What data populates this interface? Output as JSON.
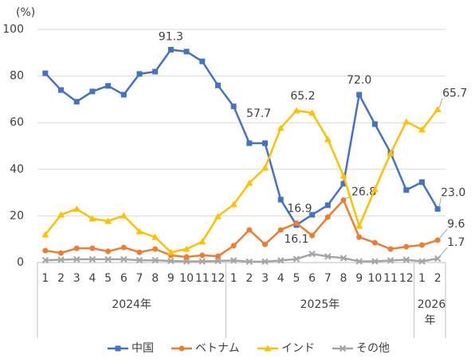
{
  "chart_data": {
    "type": "line",
    "y_label": "(%)",
    "ylim": [
      0,
      100
    ],
    "yticks": [
      0,
      20,
      40,
      60,
      80,
      100
    ],
    "grid": true,
    "groups": [
      {
        "label": "2024年",
        "categories": [
          "1",
          "2",
          "3",
          "4",
          "5",
          "6",
          "7",
          "8",
          "9",
          "10",
          "11",
          "12"
        ]
      },
      {
        "label": "2025年",
        "categories": [
          "1",
          "2",
          "3",
          "4",
          "5",
          "6",
          "7",
          "8",
          "9",
          "10",
          "11",
          "12"
        ]
      },
      {
        "label": "2026年",
        "categories": [
          "1",
          "2"
        ]
      }
    ],
    "legend": "bottom",
    "series": [
      {
        "name": "中国",
        "color": "#4472c4",
        "marker": "square",
        "values": [
          81.2,
          74,
          69,
          73.4,
          75.8,
          72,
          80.9,
          81.9,
          91.3,
          90.5,
          86.3,
          76,
          67,
          51.2,
          51.2,
          27,
          16.1,
          20.5,
          24.6,
          33.8,
          72.0,
          59.4,
          47.1,
          31.1,
          34.5,
          23.0
        ],
        "value_labels": [
          null,
          null,
          null,
          null,
          null,
          null,
          null,
          null,
          "91.3",
          null,
          null,
          null,
          null,
          null,
          null,
          null,
          "16.1",
          null,
          null,
          null,
          "72.0",
          null,
          null,
          null,
          null,
          "23.0"
        ]
      },
      {
        "name": "ベトナム",
        "color": "#ed7d31",
        "marker": "circle",
        "values": [
          5.1,
          4.1,
          6.1,
          6.1,
          4.8,
          6.5,
          4.4,
          5.8,
          3.1,
          2.4,
          3.1,
          2.7,
          7.2,
          14,
          7.8,
          14,
          16.9,
          11.6,
          19.5,
          26.8,
          10.9,
          8.5,
          5.8,
          6.8,
          7.5,
          9.6
        ],
        "value_labels": [
          null,
          null,
          null,
          null,
          null,
          null,
          null,
          null,
          null,
          null,
          null,
          null,
          null,
          null,
          null,
          null,
          "16.9",
          null,
          null,
          "26.8",
          null,
          null,
          null,
          null,
          null,
          "9.6"
        ]
      },
      {
        "name": "インド",
        "color": "#ffc000",
        "marker": "triangle",
        "values": [
          12,
          20.5,
          23,
          18.8,
          17.8,
          20.1,
          13.3,
          10.9,
          4.4,
          5.8,
          8.9,
          19.8,
          24.9,
          34.1,
          40.6,
          57.7,
          65.2,
          64.2,
          52.9,
          37.2,
          15.7,
          31.4,
          46.8,
          60.4,
          57,
          65.7
        ],
        "value_labels": [
          null,
          null,
          null,
          null,
          null,
          null,
          null,
          null,
          null,
          null,
          null,
          null,
          null,
          null,
          null,
          "57.7",
          "65.2",
          null,
          null,
          null,
          null,
          null,
          null,
          null,
          null,
          "65.7"
        ]
      },
      {
        "name": "その他",
        "color": "#a5a5a5",
        "marker": "x",
        "values": [
          1.0,
          1.2,
          1.4,
          1.4,
          1.4,
          1.4,
          1.0,
          1.0,
          0.7,
          0.5,
          0.5,
          0.7,
          0.9,
          0.4,
          0.4,
          0.9,
          1.5,
          3.7,
          2.6,
          1.9,
          0.5,
          0.5,
          0.9,
          1.2,
          0.5,
          1.7
        ],
        "value_labels": [
          null,
          null,
          null,
          null,
          null,
          null,
          null,
          null,
          null,
          null,
          null,
          null,
          null,
          null,
          null,
          null,
          null,
          null,
          null,
          null,
          null,
          null,
          null,
          null,
          null,
          "1.7"
        ]
      }
    ]
  }
}
